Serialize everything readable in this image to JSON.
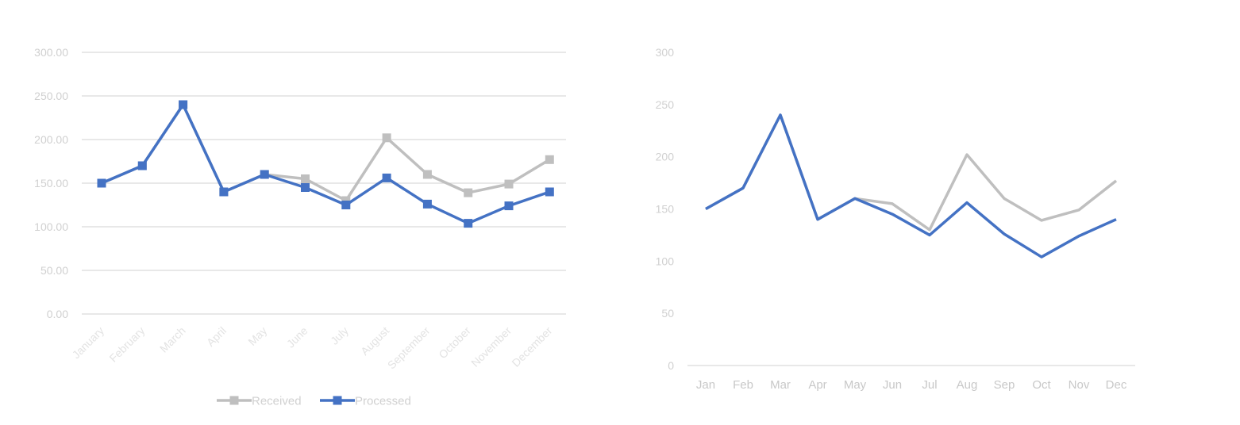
{
  "chart_data": [
    {
      "type": "line",
      "markers": "square",
      "categories": [
        "January",
        "February",
        "March",
        "April",
        "May",
        "June",
        "July",
        "August",
        "September",
        "October",
        "November",
        "December"
      ],
      "series": [
        {
          "name": "Received",
          "color": "#bfbfbf",
          "values": [
            150,
            170,
            240,
            140,
            160,
            155,
            130,
            202,
            160,
            139,
            149,
            177
          ]
        },
        {
          "name": "Processed",
          "color": "#4472c4",
          "values": [
            150,
            170,
            240,
            140,
            160,
            145,
            125,
            156,
            126,
            104,
            124,
            140
          ]
        }
      ],
      "yticks": [
        "0.00",
        "50.00",
        "100.00",
        "150.00",
        "200.00",
        "250.00",
        "300.00"
      ],
      "ylim": [
        0,
        300
      ],
      "grid": true,
      "legend": "bottom"
    },
    {
      "type": "line",
      "markers": "none",
      "categories": [
        "Jan",
        "Feb",
        "Mar",
        "Apr",
        "May",
        "Jun",
        "Jul",
        "Aug",
        "Sep",
        "Oct",
        "Nov",
        "Dec"
      ],
      "series": [
        {
          "color": "#bfbfbf",
          "values": [
            150,
            170,
            240,
            140,
            160,
            155,
            130,
            202,
            160,
            139,
            149,
            177
          ]
        },
        {
          "color": "#4472c4",
          "values": [
            150,
            170,
            240,
            140,
            160,
            145,
            125,
            156,
            126,
            104,
            124,
            140
          ]
        }
      ],
      "yticks": [
        "0",
        "50",
        "100",
        "150",
        "200",
        "250",
        "300"
      ],
      "ylim": [
        0,
        300
      ],
      "grid": false,
      "legend": "none"
    }
  ]
}
